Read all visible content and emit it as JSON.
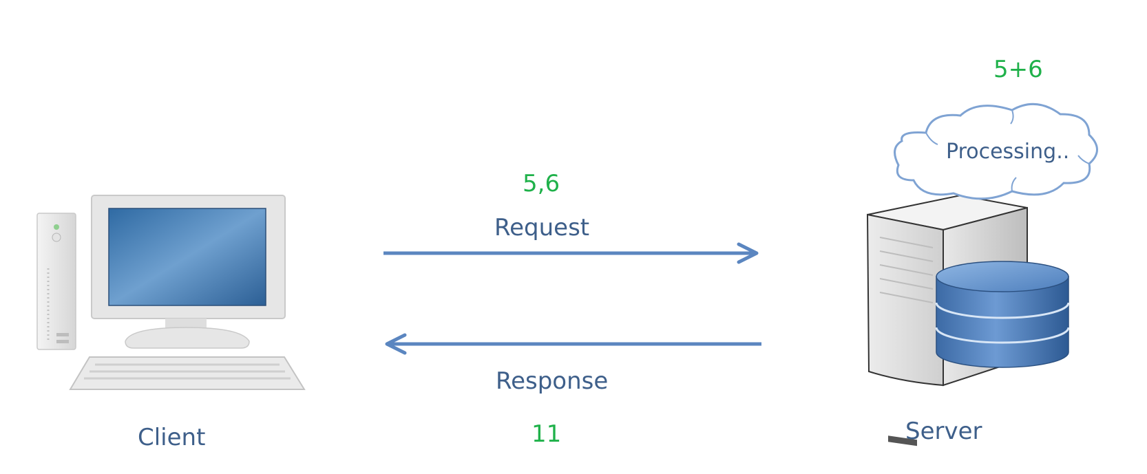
{
  "diagram": {
    "client_label": "Client",
    "server_label": "Server",
    "request": {
      "label": "Request",
      "payload": "5,6"
    },
    "response": {
      "label": "Response",
      "payload": "11"
    },
    "server_expression": "5+6",
    "cloud_text": "Processing..",
    "colors": {
      "label": "#3e5f8a",
      "value": "#1fb14a",
      "arrow": "#5b86c0",
      "cloud_stroke": "#7fa3d3"
    }
  }
}
